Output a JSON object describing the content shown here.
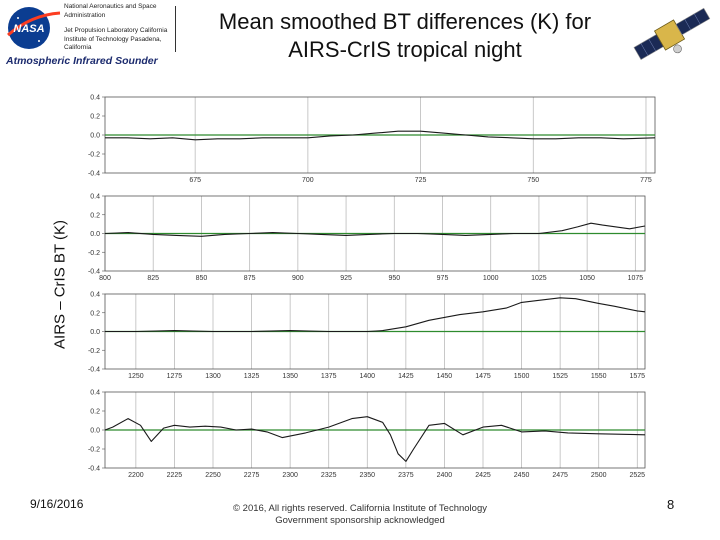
{
  "header": {
    "org_line1": "National Aeronautics and Space Administration",
    "org_line2": "Jet Propulsion Laboratory California Institute of Technology Pasadena, California",
    "logo_text": "NASA",
    "instrument": "Atmospheric Infrared Sounder",
    "title_line1": "Mean smoothed BT differences (K) for",
    "title_line2": "AIRS-CrIS tropical night"
  },
  "chart_data": {
    "type": "line",
    "ylabel": "AIRS – CrIS BT (K)",
    "colors": {
      "line": "#1a1a1a",
      "zero": "#2e8b2e",
      "grid": "#bbbbbb"
    },
    "panels": [
      {
        "name": "panel-1",
        "xlim": [
          655,
          777
        ],
        "xticks": [
          675,
          700,
          725,
          750,
          775
        ],
        "ylim": [
          -0.4,
          0.4
        ],
        "yticks": [
          "0.4",
          "0.2",
          "0.0",
          "-0.2",
          "-0.4"
        ],
        "series": {
          "x": [
            655,
            660,
            665,
            670,
            675,
            680,
            685,
            690,
            695,
            700,
            705,
            710,
            715,
            720,
            725,
            730,
            735,
            740,
            745,
            750,
            755,
            760,
            765,
            770,
            777
          ],
          "y": [
            -0.03,
            -0.03,
            -0.04,
            -0.03,
            -0.05,
            -0.04,
            -0.04,
            -0.03,
            -0.03,
            -0.03,
            -0.01,
            0.0,
            0.02,
            0.04,
            0.04,
            0.02,
            0.0,
            -0.02,
            -0.03,
            -0.04,
            -0.04,
            -0.03,
            -0.03,
            -0.04,
            -0.03
          ]
        }
      },
      {
        "name": "panel-2",
        "xlim": [
          800,
          1080
        ],
        "xticks": [
          800,
          825,
          850,
          875,
          900,
          925,
          950,
          975,
          1000,
          1025,
          1050,
          1075
        ],
        "ylim": [
          -0.4,
          0.4
        ],
        "yticks": [
          "0.4",
          "0.2",
          "0.0",
          "-0.2",
          "-0.4"
        ],
        "series": {
          "x": [
            800,
            812,
            825,
            837,
            850,
            862,
            875,
            887,
            900,
            912,
            925,
            937,
            950,
            962,
            975,
            987,
            1000,
            1012,
            1025,
            1037,
            1045,
            1052,
            1058,
            1065,
            1072,
            1080
          ],
          "y": [
            0.0,
            0.01,
            -0.01,
            -0.02,
            -0.03,
            -0.01,
            0.0,
            0.01,
            0.0,
            -0.01,
            -0.02,
            -0.01,
            0.0,
            0.0,
            -0.01,
            -0.02,
            -0.01,
            0.0,
            0.0,
            0.03,
            0.07,
            0.11,
            0.09,
            0.07,
            0.05,
            0.08
          ]
        }
      },
      {
        "name": "panel-3",
        "xlim": [
          1230,
          1580
        ],
        "xticks": [
          1250,
          1275,
          1300,
          1325,
          1350,
          1375,
          1400,
          1425,
          1450,
          1475,
          1500,
          1525,
          1550,
          1575
        ],
        "ylim": [
          -0.4,
          0.4
        ],
        "yticks": [
          "0.4",
          "0.2",
          "0.0",
          "-0.2",
          "-0.4"
        ],
        "series": {
          "x": [
            1230,
            1250,
            1275,
            1300,
            1325,
            1350,
            1375,
            1400,
            1410,
            1425,
            1440,
            1450,
            1460,
            1475,
            1490,
            1500,
            1510,
            1525,
            1535,
            1550,
            1560,
            1575,
            1580
          ],
          "y": [
            0.0,
            0.0,
            0.01,
            0.0,
            0.0,
            0.01,
            0.0,
            0.0,
            0.01,
            0.05,
            0.12,
            0.15,
            0.18,
            0.21,
            0.25,
            0.31,
            0.33,
            0.36,
            0.35,
            0.3,
            0.27,
            0.22,
            0.21
          ]
        }
      },
      {
        "name": "panel-4",
        "xlim": [
          2180,
          2530
        ],
        "xticks": [
          2200,
          2225,
          2250,
          2275,
          2300,
          2325,
          2350,
          2375,
          2400,
          2425,
          2450,
          2475,
          2500,
          2525
        ],
        "ylim": [
          -0.4,
          0.4
        ],
        "yticks": [
          "0.4",
          "0.2",
          "0.0",
          "-0.2",
          "-0.4"
        ],
        "series": {
          "x": [
            2180,
            2185,
            2195,
            2203,
            2210,
            2218,
            2225,
            2235,
            2245,
            2255,
            2265,
            2275,
            2285,
            2295,
            2310,
            2325,
            2340,
            2350,
            2360,
            2365,
            2370,
            2375,
            2380,
            2390,
            2400,
            2412,
            2425,
            2437,
            2450,
            2465,
            2480,
            2500,
            2530
          ],
          "y": [
            0.0,
            0.03,
            0.12,
            0.05,
            -0.12,
            0.02,
            0.05,
            0.03,
            0.04,
            0.03,
            0.0,
            0.01,
            -0.02,
            -0.08,
            -0.03,
            0.03,
            0.12,
            0.14,
            0.08,
            -0.05,
            -0.25,
            -0.33,
            -0.2,
            0.05,
            0.07,
            -0.05,
            0.03,
            0.05,
            -0.02,
            -0.01,
            -0.03,
            -0.04,
            -0.05
          ]
        }
      }
    ]
  },
  "footer": {
    "date": "9/16/2016",
    "copyright_line1": "© 2016, All rights reserved. California Institute of Technology",
    "copyright_line2": "Government sponsorship acknowledged",
    "page": "8"
  }
}
